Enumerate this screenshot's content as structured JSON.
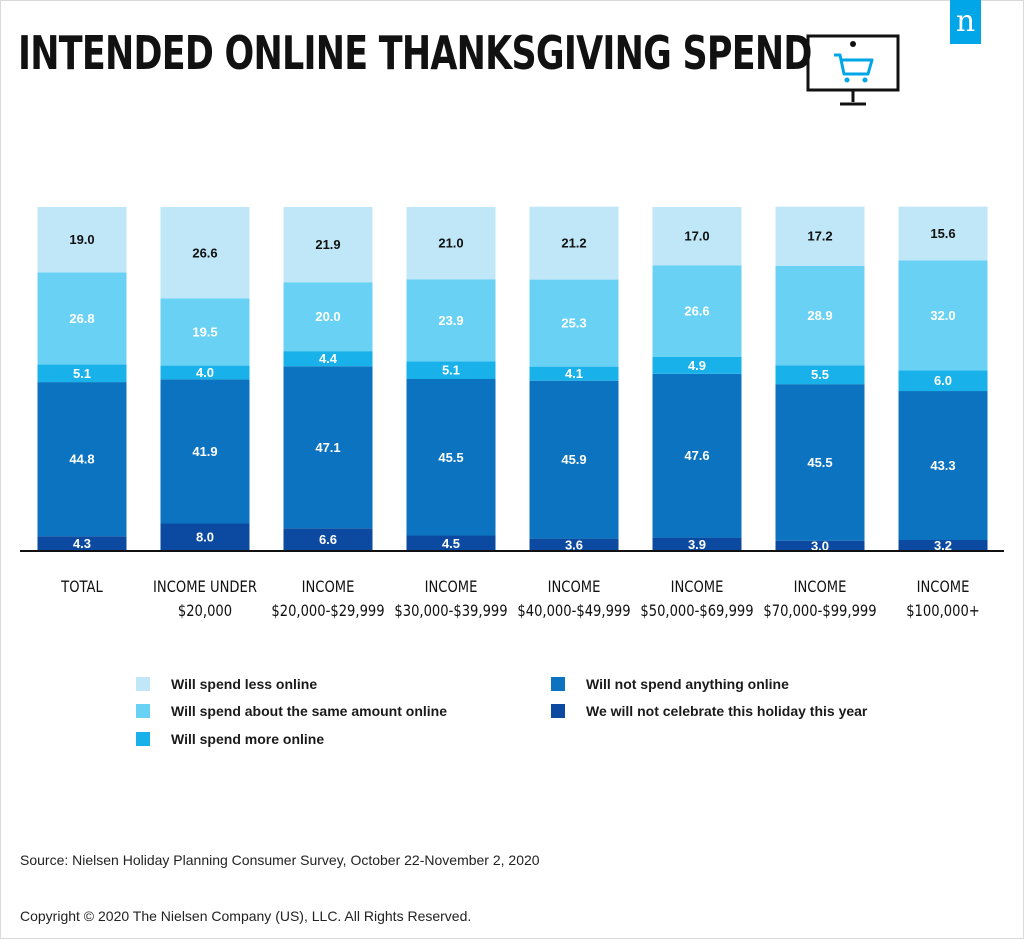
{
  "title": "INTENDED ONLINE THANKSGIVING SPEND",
  "logo_text": "n",
  "source": "Source: Nielsen Holiday Planning Consumer Survey, October 22-November 2, 2020",
  "copyright": "Copyright © 2020 The Nielsen Company (US), LLC. All Rights Reserved.",
  "colors": {
    "less": "#bfe7f7",
    "same": "#69d1f4",
    "more": "#18b1ea",
    "nothing": "#0b73bf",
    "no_celebrate": "#0b4aa0",
    "accent": "#00a6e7"
  },
  "chart_data": {
    "type": "bar",
    "stacked": true,
    "categories": [
      "TOTAL",
      "INCOME UNDER $20,000",
      "INCOME $20,000-$29,999",
      "INCOME $30,000-$39,999",
      "INCOME $40,000-$49,999",
      "INCOME $50,000-$69,999",
      "INCOME $70,000-$99,999",
      "INCOME $100,000+"
    ],
    "category_lines": [
      [
        "TOTAL"
      ],
      [
        "INCOME UNDER",
        "$20,000"
      ],
      [
        "INCOME",
        "$20,000-$29,999"
      ],
      [
        "INCOME",
        "$30,000-$39,999"
      ],
      [
        "INCOME",
        "$40,000-$49,999"
      ],
      [
        "INCOME",
        "$50,000-$69,999"
      ],
      [
        "INCOME",
        "$70,000-$99,999"
      ],
      [
        "INCOME",
        "$100,000+"
      ]
    ],
    "series": [
      {
        "name": "We will not celebrate this holiday this year",
        "key": "no_celebrate",
        "values": [
          4.3,
          8.0,
          6.6,
          4.5,
          3.6,
          3.9,
          3.0,
          3.2
        ]
      },
      {
        "name": "Will not spend anything online",
        "key": "nothing",
        "values": [
          44.8,
          41.9,
          47.1,
          45.5,
          45.9,
          47.6,
          45.5,
          43.3
        ]
      },
      {
        "name": "Will spend more online",
        "key": "more",
        "values": [
          5.1,
          4.0,
          4.4,
          5.1,
          4.1,
          4.9,
          5.5,
          6.0
        ]
      },
      {
        "name": "Will spend about the same amount online",
        "key": "same",
        "values": [
          26.8,
          19.5,
          20.0,
          23.9,
          25.3,
          26.6,
          28.9,
          32.0
        ]
      },
      {
        "name": "Will spend less online",
        "key": "less",
        "values": [
          19.0,
          26.6,
          21.9,
          21.0,
          21.2,
          17.0,
          17.2,
          15.6
        ]
      }
    ],
    "ylim": [
      0,
      100
    ],
    "xlabel": "",
    "ylabel": "",
    "legend": [
      "Will spend less online",
      "Will spend about the same amount online",
      "Will spend more online",
      "Will not spend anything online",
      "We will not celebrate this holiday this year"
    ]
  }
}
